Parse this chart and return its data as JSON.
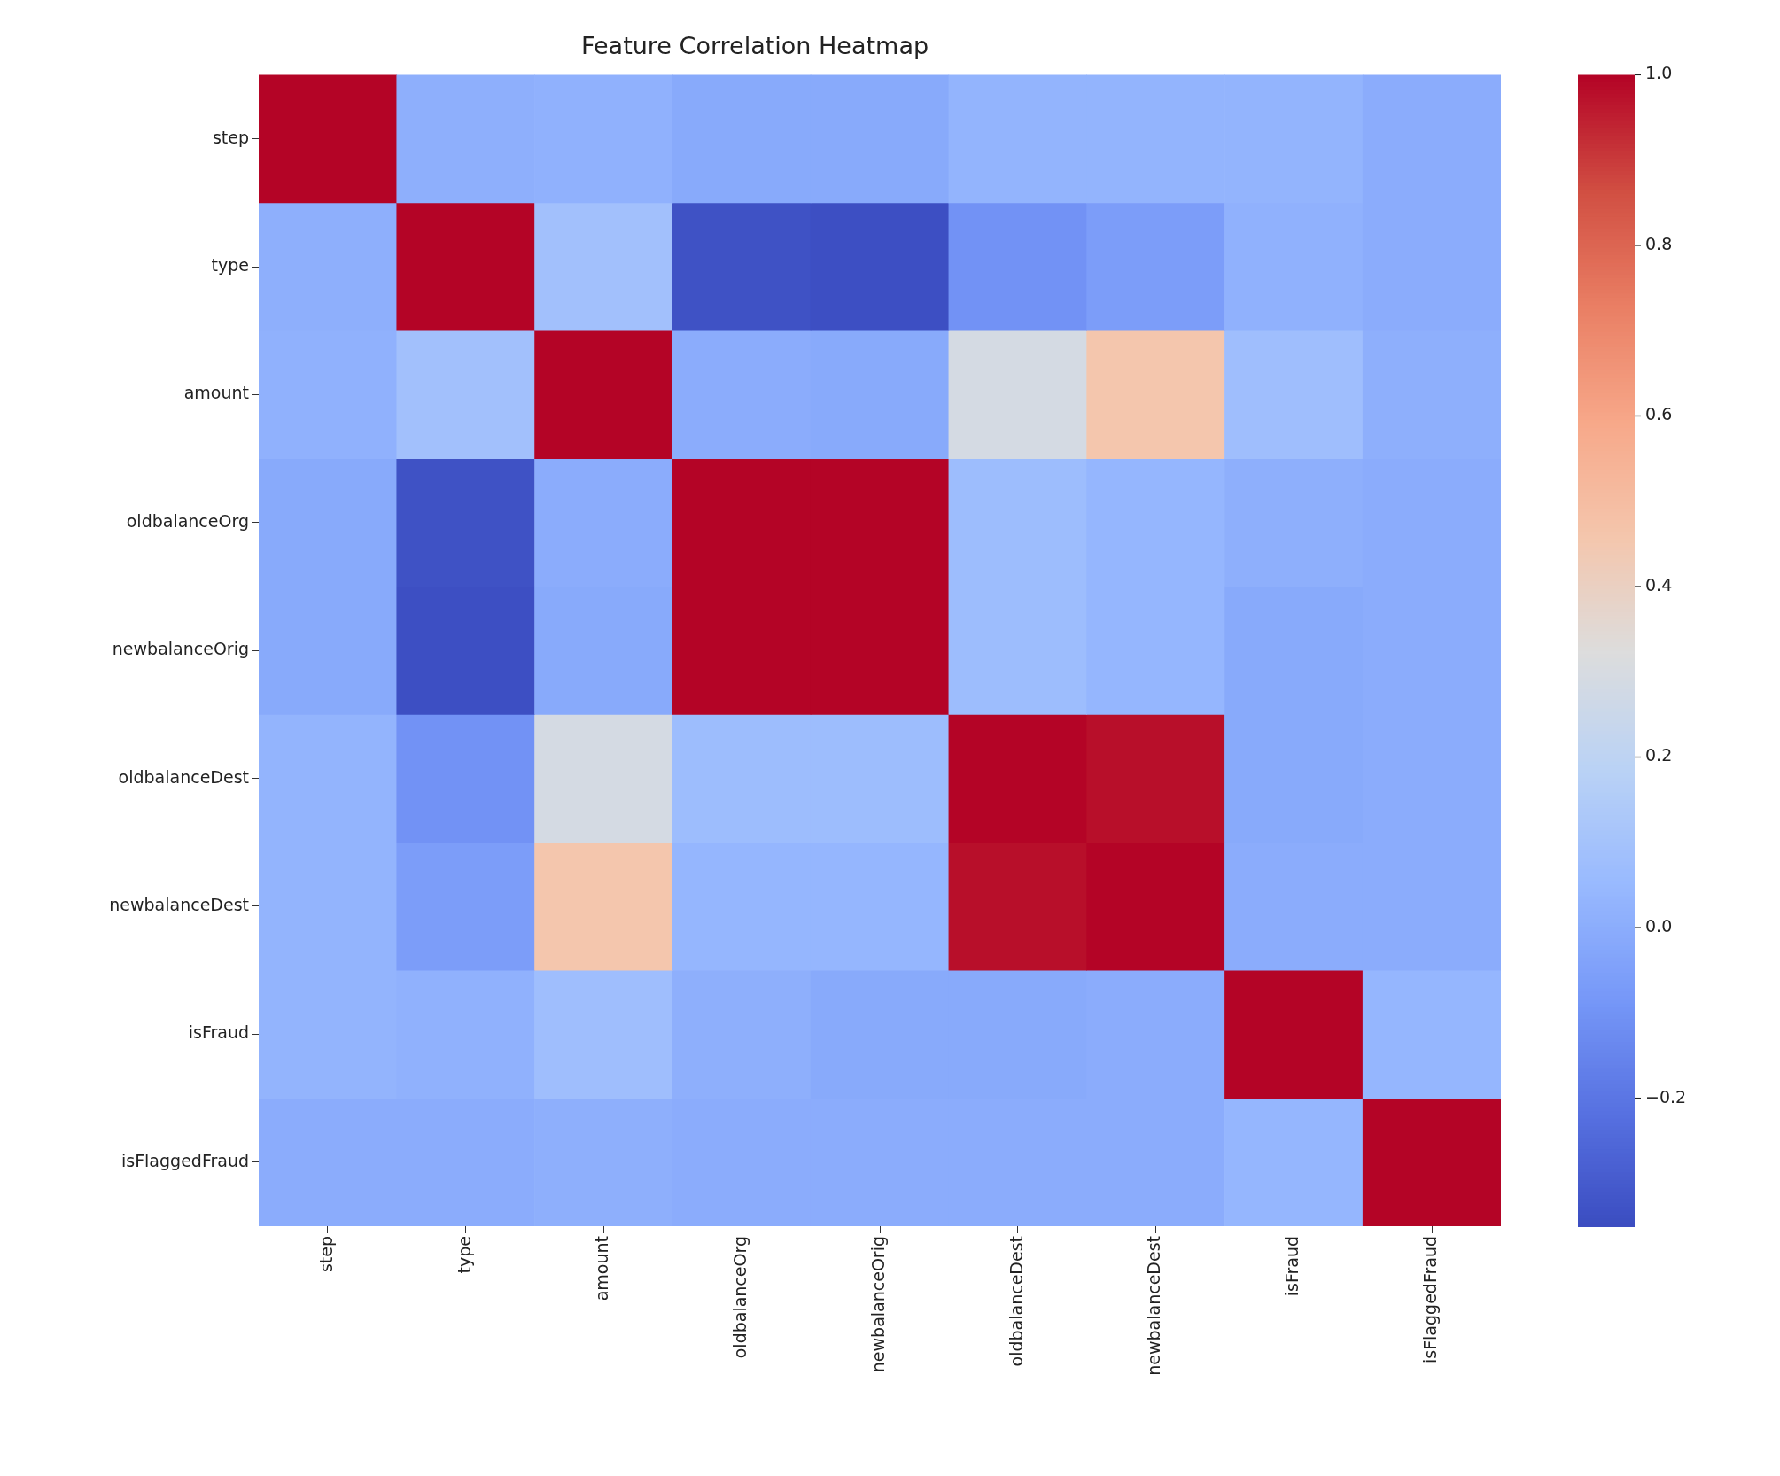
{
  "chart_data": {
    "type": "heatmap",
    "title": "Feature Correlation Heatmap",
    "categories": [
      "step",
      "type",
      "amount",
      "oldbalanceOrg",
      "newbalanceOrig",
      "oldbalanceDest",
      "newbalanceDest",
      "isFraud",
      "isFlaggedFraud"
    ],
    "y_categories": [
      "step",
      "type",
      "amount",
      "oldbalanceOrg",
      "newbalanceOrig",
      "oldbalanceDest",
      "newbalanceDest",
      "isFraud",
      "isFlaggedFraud"
    ],
    "cells": [
      [
        1.0,
        0.01,
        0.02,
        -0.01,
        -0.01,
        0.03,
        0.03,
        0.03,
        0.0
      ],
      [
        0.01,
        1.0,
        0.09,
        -0.33,
        -0.34,
        -0.1,
        -0.06,
        0.02,
        0.0
      ],
      [
        0.02,
        0.09,
        1.0,
        0.0,
        -0.01,
        0.29,
        0.46,
        0.08,
        0.01
      ],
      [
        -0.01,
        -0.33,
        0.0,
        1.0,
        1.0,
        0.07,
        0.04,
        0.01,
        0.0
      ],
      [
        -0.01,
        -0.34,
        -0.01,
        1.0,
        1.0,
        0.07,
        0.04,
        -0.01,
        0.0
      ],
      [
        0.03,
        -0.1,
        0.29,
        0.07,
        0.07,
        1.0,
        0.98,
        -0.01,
        0.0
      ],
      [
        0.03,
        -0.06,
        0.46,
        0.04,
        0.04,
        0.98,
        1.0,
        0.0,
        0.0
      ],
      [
        0.03,
        0.02,
        0.08,
        0.01,
        -0.01,
        -0.01,
        0.0,
        1.0,
        0.04
      ],
      [
        0.0,
        0.0,
        0.01,
        0.0,
        0.0,
        0.0,
        0.0,
        0.04,
        1.0
      ]
    ],
    "clim": [
      -0.35,
      1.0
    ],
    "cticks": [
      {
        "value": -0.2,
        "label": "−0.2"
      },
      {
        "value": 0,
        "label": "0.0"
      },
      0.2,
      0.4,
      0.6,
      0.8,
      {
        "value": 1,
        "label": "1.0"
      }
    ]
  }
}
